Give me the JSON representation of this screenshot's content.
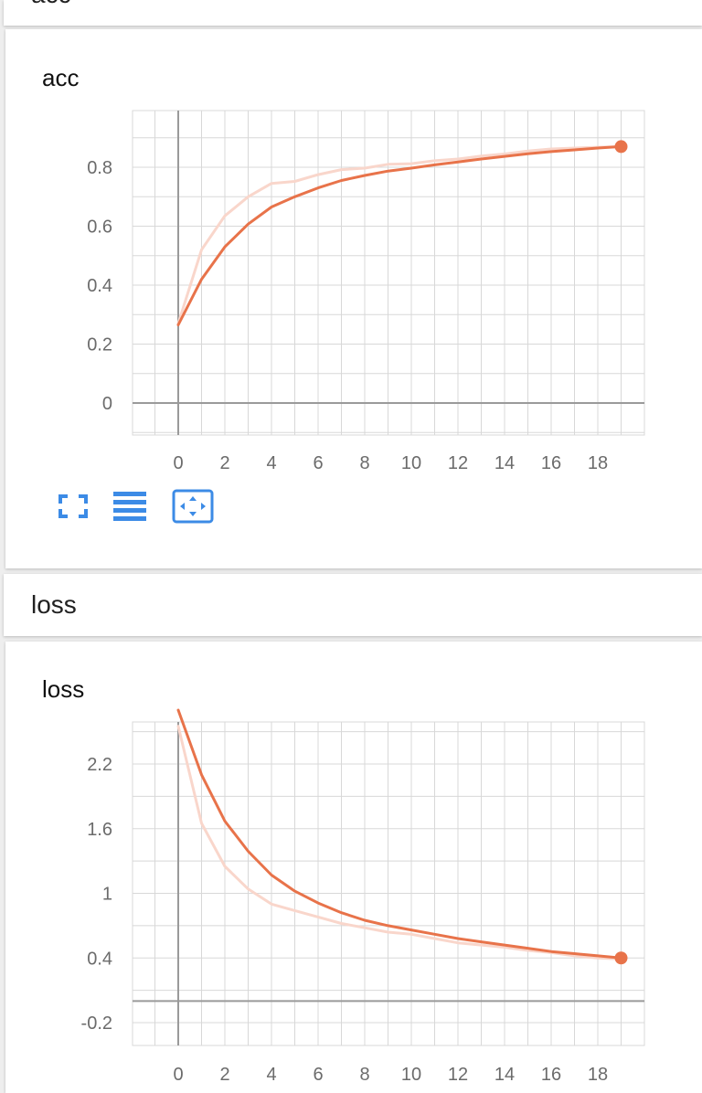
{
  "top_section": {
    "title": "acc"
  },
  "loss_section": {
    "title": "loss"
  },
  "colors": {
    "line": "#e8734a",
    "line_raw": "#f9d6cb",
    "grid": "#d8d8d8",
    "axis": "#9a9a9a",
    "toolbar_icon": "#3c8be6"
  },
  "toolbar": {
    "icons": [
      "fullscreen-icon",
      "toggle-log-scale-icon",
      "fit-domain-icon"
    ]
  },
  "chart_data": [
    {
      "type": "line",
      "title": "acc",
      "xlabel": "",
      "ylabel": "",
      "x_ticks": [
        "0",
        "2",
        "4",
        "6",
        "8",
        "10",
        "12",
        "14",
        "16",
        "18"
      ],
      "y_ticks": [
        "0",
        "0.2",
        "0.4",
        "0.6",
        "0.8"
      ],
      "xlim": [
        -2,
        20
      ],
      "ylim": [
        -0.1,
        1.0
      ],
      "grid": true,
      "series": [
        {
          "style": "raw",
          "x": [
            0,
            1,
            2,
            3,
            4,
            5,
            6,
            7,
            8,
            9,
            10,
            11,
            12,
            13,
            14,
            15,
            16,
            17,
            18,
            19
          ],
          "values": [
            0.27,
            0.52,
            0.635,
            0.7,
            0.745,
            0.752,
            0.775,
            0.792,
            0.797,
            0.81,
            0.812,
            0.822,
            0.828,
            0.838,
            0.845,
            0.855,
            0.862,
            0.865,
            0.868,
            0.87
          ]
        },
        {
          "style": "smoothed",
          "x": [
            0,
            1,
            2,
            3,
            4,
            5,
            6,
            7,
            8,
            9,
            10,
            11,
            12,
            13,
            14,
            15,
            16,
            17,
            18,
            19
          ],
          "values": [
            0.265,
            0.42,
            0.53,
            0.607,
            0.665,
            0.7,
            0.73,
            0.755,
            0.772,
            0.787,
            0.797,
            0.808,
            0.818,
            0.828,
            0.837,
            0.846,
            0.853,
            0.859,
            0.865,
            0.87
          ]
        }
      ]
    },
    {
      "type": "line",
      "title": "loss",
      "xlabel": "",
      "ylabel": "",
      "x_ticks": [
        "0",
        "2",
        "4",
        "6",
        "8",
        "10",
        "12",
        "14",
        "16",
        "18"
      ],
      "y_ticks": [
        "-0.2",
        "0.4",
        "1",
        "1.6",
        "2.2"
      ],
      "xlim": [
        -2,
        20
      ],
      "ylim": [
        -0.6,
        2.7
      ],
      "grid": true,
      "series": [
        {
          "style": "raw",
          "x": [
            0,
            1,
            2,
            3,
            4,
            5,
            6,
            7,
            8,
            9,
            10,
            11,
            12,
            13,
            14,
            15,
            16,
            17,
            18,
            19
          ],
          "values": [
            2.55,
            1.65,
            1.25,
            1.04,
            0.9,
            0.84,
            0.78,
            0.72,
            0.68,
            0.64,
            0.62,
            0.58,
            0.54,
            0.52,
            0.5,
            0.47,
            0.45,
            0.42,
            0.4,
            0.39
          ]
        },
        {
          "style": "smoothed",
          "x": [
            0,
            1,
            2,
            3,
            4,
            5,
            6,
            7,
            8,
            9,
            10,
            11,
            12,
            13,
            14,
            15,
            16,
            17,
            18,
            19
          ],
          "values": [
            2.7,
            2.1,
            1.67,
            1.39,
            1.17,
            1.02,
            0.91,
            0.82,
            0.75,
            0.7,
            0.66,
            0.62,
            0.58,
            0.55,
            0.52,
            0.49,
            0.46,
            0.44,
            0.42,
            0.4
          ]
        }
      ]
    }
  ]
}
